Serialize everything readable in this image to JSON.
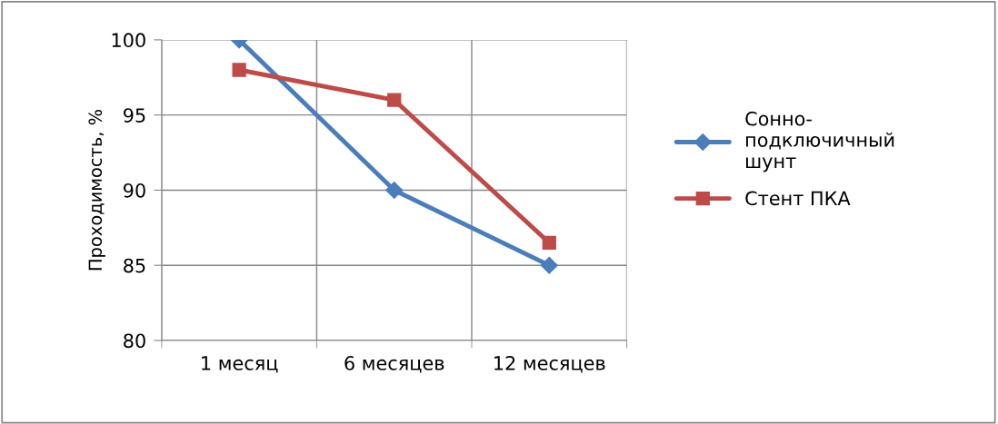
{
  "chart_data": {
    "type": "line",
    "ylabel": "Проходимость, %",
    "categories": [
      "1 месяц",
      "6 месяцев",
      "12 месяцев"
    ],
    "series": [
      {
        "name": "Сонно-\nподключичный\nшунт",
        "color": "#4a7ebb",
        "marker": "diamond",
        "values": [
          100,
          90,
          85
        ]
      },
      {
        "name": "Стент ПКА",
        "color": "#be4b48",
        "marker": "square",
        "values": [
          98,
          96,
          86.5
        ]
      }
    ],
    "ylim": [
      80,
      100
    ],
    "yticks": [
      80,
      85,
      90,
      95,
      100
    ],
    "grid": true,
    "legend": "right",
    "line_style": "solid"
  }
}
